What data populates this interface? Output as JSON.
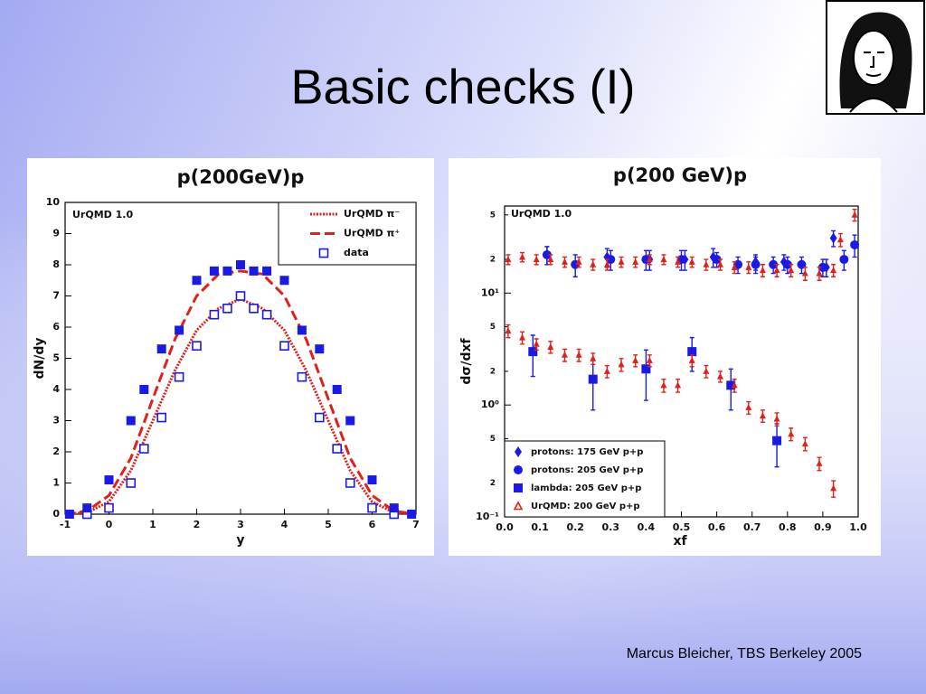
{
  "title": "Basic checks (I)",
  "footer": "Marcus Bleicher, TBS Berkeley 2005",
  "chart_data": [
    {
      "type": "line",
      "title": "p(200GeV)p",
      "x_label": "y",
      "y_label": "dN/dy",
      "annotation": "UrQMD 1.0",
      "xlim": [
        -1,
        7
      ],
      "xticks": [
        -1,
        0,
        1,
        2,
        3,
        4,
        5,
        6,
        7
      ],
      "ylim": [
        0,
        10
      ],
      "yticks": [
        0,
        1,
        2,
        3,
        4,
        5,
        6,
        7,
        8,
        9,
        10
      ],
      "legend": "upper right",
      "series": [
        {
          "name": "UrQMD π⁻",
          "color": "#e0201a",
          "line_style": "dotted",
          "x": [
            -1,
            -0.5,
            0,
            0.5,
            1,
            1.5,
            2,
            2.5,
            3,
            3.5,
            4,
            4.5,
            5,
            5.5,
            6,
            6.5,
            7
          ],
          "values": [
            0,
            0.05,
            0.4,
            1.4,
            3.0,
            4.6,
            5.9,
            6.6,
            6.9,
            6.6,
            5.9,
            4.6,
            3.0,
            1.4,
            0.4,
            0.05,
            0
          ]
        },
        {
          "name": "UrQMD π⁺",
          "color": "#e0201a",
          "line_style": "dashed",
          "x": [
            -1,
            -0.5,
            0,
            0.5,
            1,
            1.5,
            2,
            2.5,
            3,
            3.5,
            4,
            4.5,
            5,
            5.5,
            6,
            6.5,
            7
          ],
          "values": [
            0,
            0.1,
            0.6,
            1.8,
            3.7,
            5.6,
            7.0,
            7.7,
            7.8,
            7.7,
            7.0,
            5.6,
            3.7,
            1.8,
            0.6,
            0.1,
            0
          ]
        },
        {
          "name": "data",
          "color": "#1a1ae6",
          "marker": "square-open",
          "x": [
            -0.5,
            0,
            0.5,
            0.8,
            1.2,
            1.6,
            2,
            2.4,
            2.7,
            3,
            3.3,
            3.6,
            4,
            4.4,
            4.8,
            5.2,
            5.5,
            6,
            6.5
          ],
          "values": [
            0,
            0.2,
            1.0,
            2.1,
            3.1,
            4.4,
            5.4,
            6.4,
            6.6,
            7.0,
            6.6,
            6.4,
            5.4,
            4.4,
            3.1,
            2.1,
            1.0,
            0.2,
            0
          ]
        },
        {
          "color": "#1a1ae6",
          "marker": "square",
          "x": [
            -0.9,
            -0.5,
            0,
            0.5,
            0.8,
            1.2,
            1.6,
            2,
            2.4,
            2.7,
            3,
            3.3,
            3.6,
            4,
            4.4,
            4.8,
            5.2,
            5.5,
            6,
            6.5,
            6.9
          ],
          "values": [
            0,
            0.2,
            1.1,
            3.0,
            4.0,
            5.3,
            5.9,
            7.5,
            7.8,
            7.8,
            8.0,
            7.8,
            7.8,
            7.5,
            5.9,
            5.3,
            4.0,
            3.0,
            1.1,
            0.2,
            0
          ]
        }
      ]
    },
    {
      "type": "scatter",
      "title": "p(200 GeV)p",
      "x_label": "xf",
      "y_label": "dσ/dxf",
      "annotation": "UrQMD 1.0",
      "xlim": [
        0,
        1
      ],
      "xticks": [
        {
          "value": 0,
          "label": "0.0"
        },
        0.1,
        0.2,
        0.3,
        0.4,
        0.5,
        0.6,
        0.7,
        0.8,
        0.9,
        {
          "value": 1,
          "label": "1.0"
        }
      ],
      "ylim": [
        0.1,
        60
      ],
      "log_y": true,
      "yticks": [
        {
          "value": 0.1,
          "label": "10⁻¹"
        },
        {
          "value": 0.2,
          "label": "2"
        },
        {
          "value": 0.5,
          "label": "5"
        },
        {
          "value": 1,
          "label": "10⁰"
        },
        2,
        5,
        {
          "value": 10,
          "label": "10¹"
        },
        {
          "value": 20,
          "label": "2"
        },
        {
          "value": 50,
          "label": "5"
        }
      ],
      "legend": "lower left",
      "series": [
        {
          "name": "protons: 175 GeV p+p",
          "color": "#1a1ae6",
          "marker": "diamond",
          "x": [
            0.12,
            0.29,
            0.41,
            0.51,
            0.59,
            0.71,
            0.79,
            0.91,
            0.93
          ],
          "values": [
            22,
            21,
            20,
            20,
            21,
            19,
            19,
            17,
            31
          ],
          "errors": [
            4,
            4,
            4,
            4,
            4,
            3,
            3,
            3,
            5
          ]
        },
        {
          "name": "protons: 205 GeV p+p",
          "color": "#1a1ae6",
          "marker": "circle",
          "x": [
            0.12,
            0.2,
            0.3,
            0.4,
            0.5,
            0.6,
            0.66,
            0.71,
            0.76,
            0.8,
            0.84,
            0.9,
            0.96,
            0.99
          ],
          "values": [
            22,
            18,
            20,
            20,
            20,
            20,
            18,
            18,
            18,
            18,
            18,
            17,
            20,
            27
          ],
          "errors": [
            4,
            4,
            4,
            4,
            4,
            3,
            3,
            3,
            3,
            3,
            3,
            3,
            4,
            6
          ]
        },
        {
          "name": "lambda: 205 GeV p+p",
          "color": "#1a1ae6",
          "marker": "square",
          "x": [
            0.08,
            0.25,
            0.4,
            0.53,
            0.64,
            0.77
          ],
          "values": [
            3.0,
            1.7,
            2.1,
            3.0,
            1.5,
            0.48
          ],
          "errors": [
            1.2,
            0.8,
            1.0,
            1.0,
            0.6,
            0.2
          ]
        },
        {
          "name": "UrQMD: 200 GeV p+p",
          "color": "#e0201a",
          "marker": "triangle",
          "legend_marker": "triangle-open",
          "x": [
            0.01,
            0.05,
            0.09,
            0.13,
            0.17,
            0.21,
            0.25,
            0.29,
            0.33,
            0.37,
            0.41,
            0.45,
            0.49,
            0.53,
            0.57,
            0.61,
            0.65,
            0.69,
            0.73,
            0.77,
            0.81,
            0.85,
            0.89,
            0.93,
            0.95,
            0.99,
            0.01,
            0.05,
            0.09,
            0.13,
            0.17,
            0.21,
            0.25,
            0.29,
            0.33,
            0.37,
            0.41,
            0.45,
            0.49,
            0.53,
            0.57,
            0.61,
            0.65,
            0.69,
            0.73,
            0.77,
            0.81,
            0.85,
            0.89,
            0.93
          ],
          "values": [
            20,
            21,
            20,
            20,
            19,
            19,
            18,
            18,
            19,
            19,
            20,
            20,
            19,
            19,
            18,
            18,
            17,
            17,
            16,
            16,
            16,
            15,
            15,
            16,
            30,
            50,
            4.6,
            4.0,
            3.5,
            3.3,
            2.8,
            2.8,
            2.6,
            2.0,
            2.3,
            2.5,
            2.5,
            1.5,
            1.5,
            2.5,
            2.0,
            1.8,
            1.5,
            0.95,
            0.8,
            0.75,
            0.55,
            0.45,
            0.3,
            0.18
          ],
          "errors": [
            2,
            2,
            2,
            2,
            2,
            2,
            2,
            2,
            2,
            2,
            2,
            2,
            2,
            2,
            2,
            2,
            2,
            2,
            2,
            2,
            2,
            2,
            2,
            2,
            4,
            6,
            0.6,
            0.5,
            0.4,
            0.4,
            0.35,
            0.35,
            0.3,
            0.25,
            0.3,
            0.3,
            0.3,
            0.2,
            0.2,
            0.3,
            0.25,
            0.2,
            0.2,
            0.12,
            0.1,
            0.1,
            0.07,
            0.06,
            0.04,
            0.03
          ]
        }
      ]
    }
  ]
}
